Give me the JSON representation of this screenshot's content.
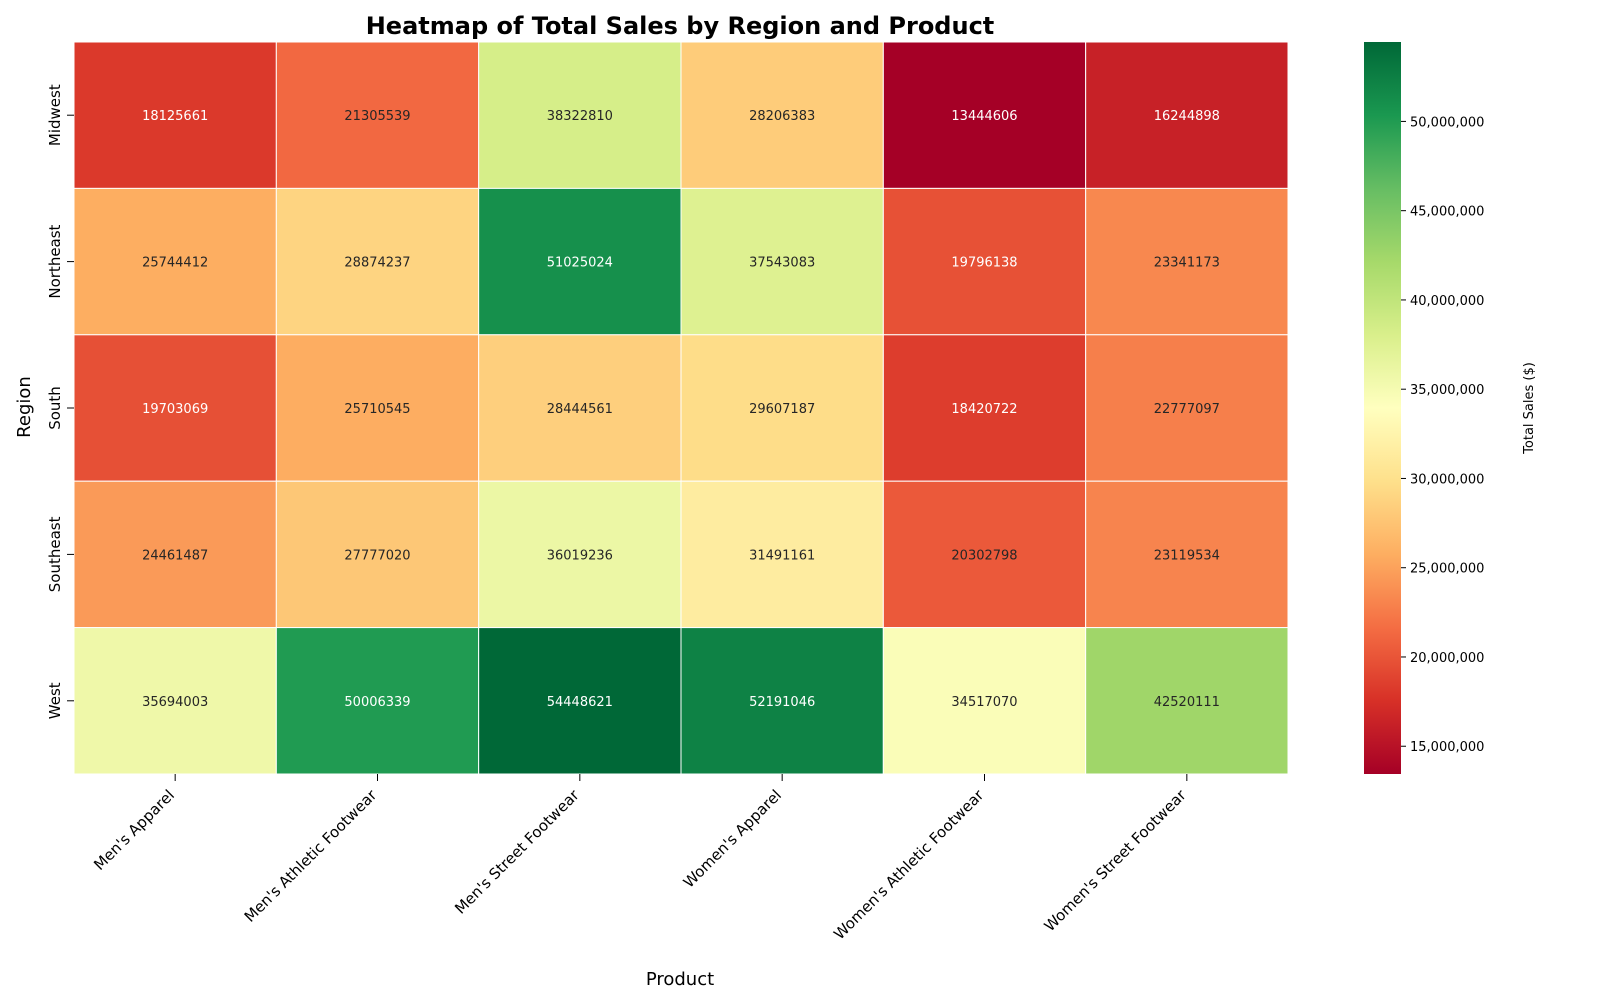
{
  "chart_data": {
    "type": "heatmap",
    "title": "Heatmap of Total Sales by Region and Product",
    "xlabel": "Product",
    "ylabel": "Region",
    "x_categories": [
      "Men's Apparel",
      "Men's Athletic Footwear",
      "Men's Street Footwear",
      "Women's Apparel",
      "Women's Athletic Footwear",
      "Women's Street Footwear"
    ],
    "y_categories": [
      "Midwest",
      "Northeast",
      "South",
      "Southeast",
      "West"
    ],
    "values": [
      [
        18125661,
        21305539,
        38322810,
        28206383,
        13444606,
        16244898
      ],
      [
        25744412,
        28874237,
        51025024,
        37543083,
        19796138,
        23341173
      ],
      [
        19703069,
        25710545,
        28444561,
        29607187,
        18420722,
        22777097
      ],
      [
        24461487,
        27777020,
        36019236,
        31491161,
        20302798,
        23119534
      ],
      [
        35694003,
        50006339,
        54448621,
        52191046,
        34517070,
        42520111
      ]
    ],
    "colormap": "RdYlGn",
    "colorbar": {
      "label": "Total Sales ($)",
      "range": [
        13444606,
        54448621
      ],
      "ticks": [
        15000000,
        20000000,
        25000000,
        30000000,
        35000000,
        40000000,
        45000000,
        50000000
      ],
      "tick_labels": [
        "15,000,000",
        "20,000,000",
        "25,000,000",
        "30,000,000",
        "35,000,000",
        "40,000,000",
        "45,000,000",
        "50,000,000"
      ]
    },
    "grid": false,
    "legend": "colorbar-right"
  }
}
